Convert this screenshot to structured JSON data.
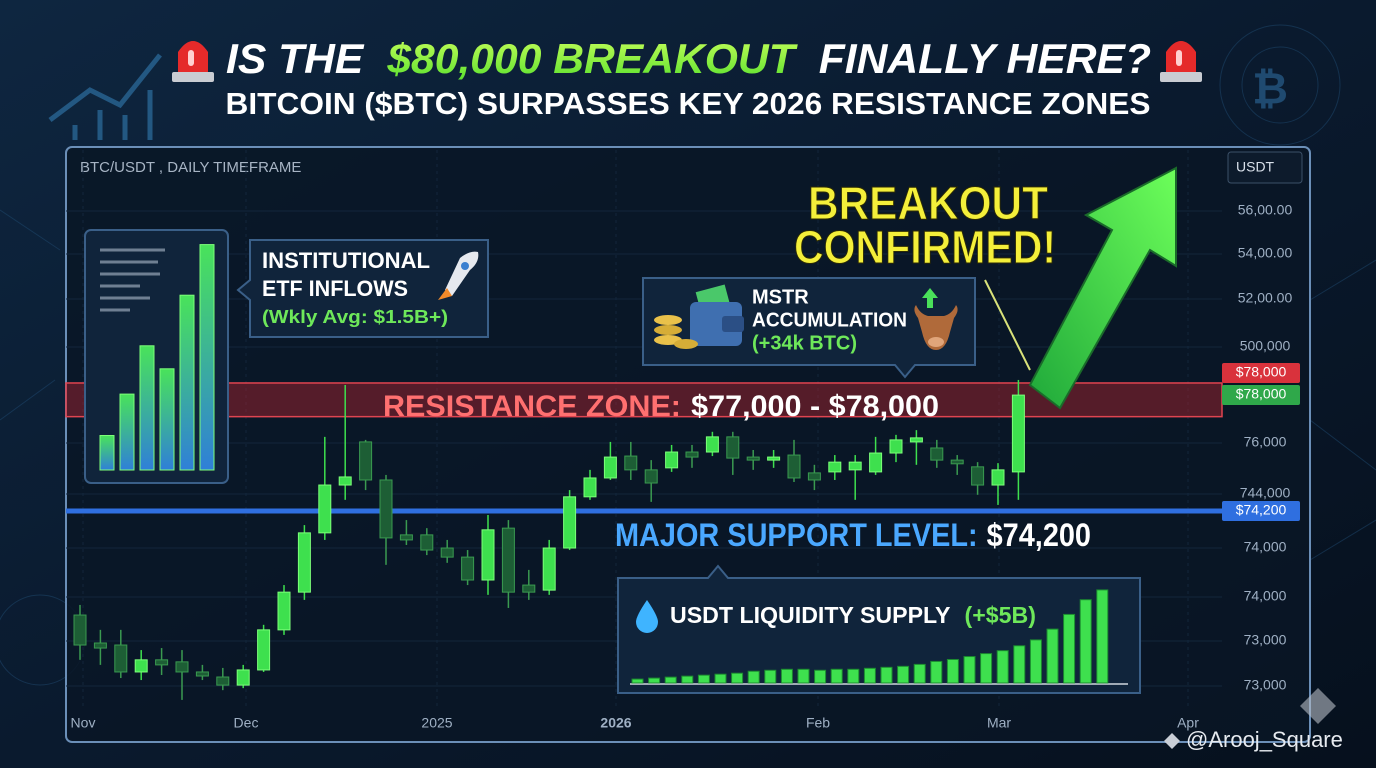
{
  "header": {
    "title_parts": [
      "IS THE",
      "$80,000 BREAKOUT",
      "FINALLY HERE?"
    ],
    "subtitle": "BITCOIN ($BTC) SURPASSES KEY 2026 RESISTANCE ZONES"
  },
  "watermark": "@Arooj_Square",
  "chart_data": [
    {
      "type": "candlestick",
      "title": "BTC/USDT , DAILY TIMEFRAME",
      "unit_label": "USDT",
      "categories": [
        null,
        null,
        null,
        null,
        null,
        null,
        null,
        null,
        null,
        null,
        null,
        null,
        null,
        null,
        null,
        null,
        null,
        null,
        null,
        null,
        null,
        null,
        null,
        null,
        null,
        null,
        null,
        null,
        null,
        null,
        null,
        null,
        null,
        null,
        null,
        null,
        null,
        null,
        null,
        null,
        null,
        null,
        null,
        null,
        null,
        null,
        null
      ],
      "open": [
        71110,
        70280,
        70220,
        69420,
        69780,
        69720,
        69420,
        69270,
        69030,
        69480,
        70670,
        71790,
        73550,
        74970,
        76250,
        75120,
        73490,
        73490,
        73100,
        72830,
        72150,
        73690,
        72000,
        71850,
        73100,
        74620,
        75180,
        75830,
        75420,
        75480,
        75950,
        75950,
        76400,
        75800,
        75710,
        75860,
        75330,
        75360,
        75420,
        75360,
        75920,
        76250,
        76070,
        75710,
        75510,
        74970,
        75360
      ],
      "high": [
        71410,
        70670,
        70670,
        70070,
        70130,
        70070,
        69630,
        69540,
        69630,
        70820,
        72000,
        73780,
        76400,
        77940,
        76310,
        75270,
        73930,
        73690,
        73340,
        73040,
        74080,
        73930,
        72450,
        73340,
        74820,
        75420,
        76250,
        76250,
        75710,
        76160,
        76160,
        76550,
        76550,
        76010,
        76010,
        76310,
        75570,
        75860,
        75860,
        76400,
        76460,
        76600,
        76310,
        75860,
        75650,
        75620,
        78090
      ],
      "low": [
        69780,
        69630,
        69240,
        69180,
        69330,
        68590,
        69180,
        68880,
        68940,
        69420,
        70520,
        71560,
        73340,
        74530,
        74820,
        72600,
        73190,
        72890,
        72660,
        72000,
        71710,
        71320,
        71560,
        71710,
        73040,
        74530,
        75120,
        75120,
        74470,
        75360,
        75480,
        75830,
        75270,
        75420,
        75480,
        75060,
        74820,
        75120,
        74530,
        75270,
        75650,
        75570,
        75480,
        75270,
        74680,
        74380,
        74530
      ],
      "close": [
        70220,
        70130,
        69420,
        69780,
        69630,
        69420,
        69300,
        69030,
        69480,
        70670,
        71790,
        73550,
        74970,
        75210,
        75120,
        73400,
        73340,
        73040,
        72830,
        72150,
        73640,
        71790,
        71790,
        73100,
        74620,
        75180,
        75800,
        75420,
        75030,
        75950,
        75800,
        76400,
        75770,
        75710,
        75800,
        75180,
        75120,
        75650,
        75650,
        75920,
        76310,
        76370,
        75710,
        75600,
        74970,
        75420,
        77640
      ],
      "up_color": "#3ee04e",
      "down_color": "#1d5e35",
      "ylim": [
        67400,
        84620
      ],
      "ytick_labels": [
        "56,00.00",
        "54,00.00",
        "52,00.00",
        "500,000",
        "76,000",
        "744,000",
        "74,000",
        "74,000",
        "73,000",
        "73,000"
      ],
      "x_labels": [
        "Nov",
        "Dec",
        "2025",
        "2026",
        "Feb",
        "Mar",
        "Apr"
      ],
      "resistance_zone": [
        77000,
        78000
      ],
      "resistance_label": [
        "RESISTANCE ZONE:",
        "$77,000 - $78,000"
      ],
      "support": 74200,
      "support_label": [
        "MAJOR SUPPORT LEVEL:",
        "$74,200"
      ],
      "price_tags": [
        "$78,000",
        "$78,000",
        "$74,200"
      ],
      "breakout_label": [
        "BREAKOUT",
        "CONFIRMED!"
      ],
      "mstr_label": [
        "MSTR",
        "ACCUMULATION",
        "(+34k BTC)"
      ]
    },
    {
      "type": "bar",
      "title_lines": [
        "INSTITUTIONAL",
        "ETF INFLOWS",
        "(Wkly Avg: $1.5B+)"
      ],
      "values": [
        15,
        33,
        54,
        44,
        76,
        98
      ],
      "ylim": [
        0,
        100
      ]
    },
    {
      "type": "bar",
      "title_parts": [
        "USDT LIQUIDITY SUPPLY",
        "(+$5B)"
      ],
      "values": [
        4,
        5,
        6,
        7,
        8,
        9,
        10,
        12,
        13,
        14,
        14,
        13,
        14,
        14,
        15,
        16,
        17,
        19,
        22,
        24,
        27,
        30,
        33,
        38,
        44,
        55,
        70,
        85,
        95
      ],
      "ylim": [
        0,
        100
      ]
    }
  ]
}
